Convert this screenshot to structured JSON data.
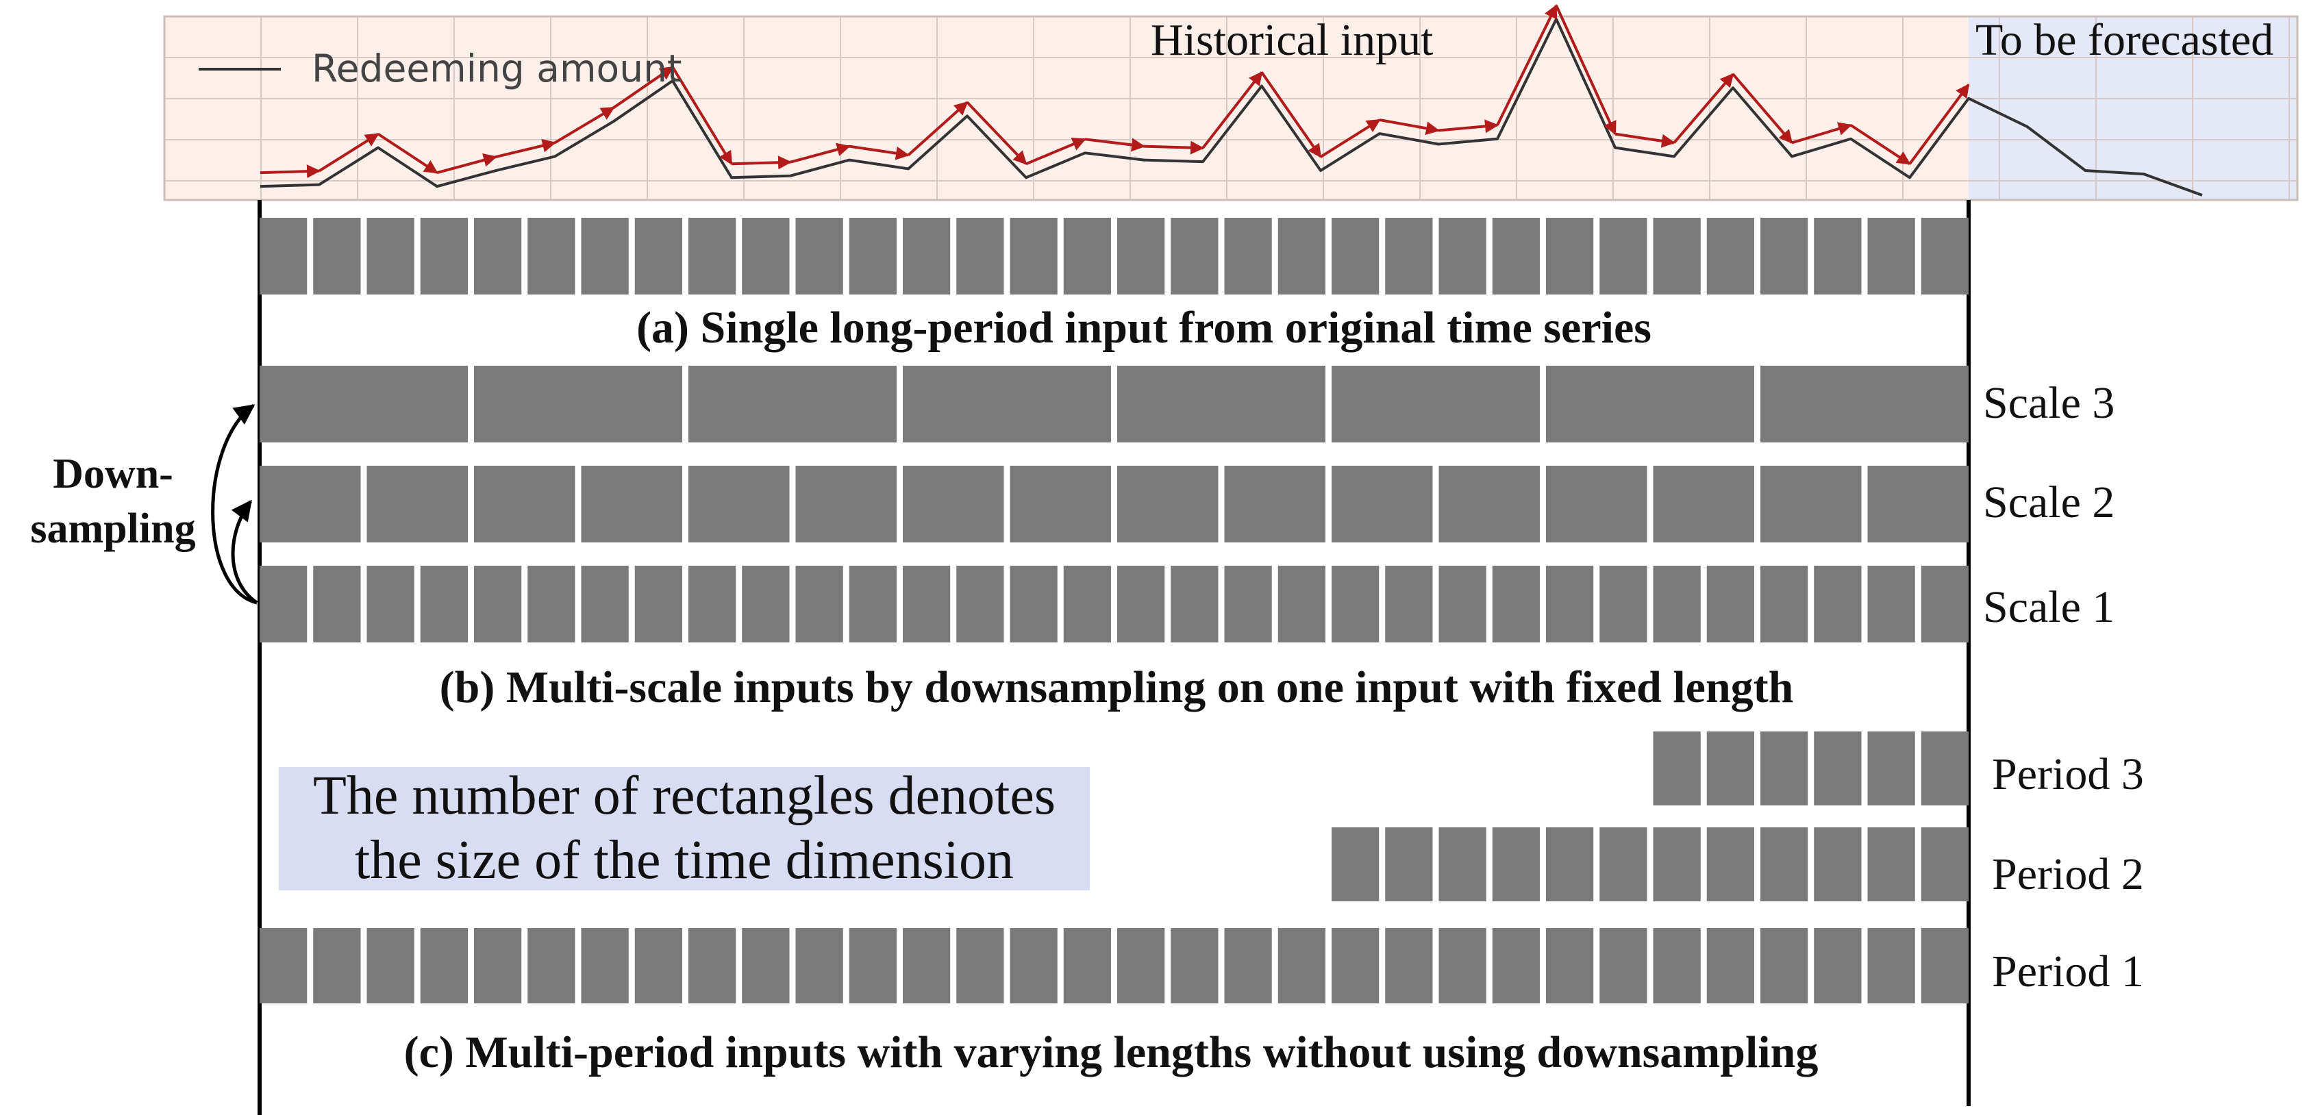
{
  "chart_data": {
    "type": "line",
    "series": [
      {
        "name": "Redeeming amount",
        "values": [
          0.05,
          0.06,
          0.27,
          0.05,
          0.14,
          0.22,
          0.42,
          0.65,
          0.1,
          0.11,
          0.2,
          0.15,
          0.45,
          0.1,
          0.24,
          0.2,
          0.19,
          0.62,
          0.14,
          0.35,
          0.29,
          0.32,
          1.0,
          0.27,
          0.22,
          0.61,
          0.22,
          0.32,
          0.1,
          0.55,
          0.39,
          0.14,
          0.12,
          0.0
        ]
      }
    ],
    "historical_points": 30,
    "forecast_points": 4,
    "annotations": [
      "Historical input",
      "To be forecasted"
    ],
    "legend_position": "top-left",
    "grid": true,
    "colors": {
      "history_background": "#fdf0ea",
      "forecast_background": "#e5e9f7",
      "grid": "#d8c9c4",
      "line": "#333333",
      "arrows": "#b31b1b"
    }
  },
  "chart": {
    "legend_label": "Redeeming amount",
    "historical_label": "Historical input",
    "forecast_label": "To be forecasted"
  },
  "section_a": {
    "title": "(a) Single long-period input from original time series",
    "blocks": 32
  },
  "section_b": {
    "title": "(b) Multi-scale inputs by downsampling on one input with fixed length",
    "rows": [
      {
        "label": "Scale 3",
        "blocks": 8
      },
      {
        "label": "Scale 2",
        "blocks": 16
      },
      {
        "label": "Scale 1",
        "blocks": 32
      }
    ],
    "downsampling_line1": "Down-",
    "downsampling_line2": "sampling"
  },
  "section_c": {
    "title": "(c) Multi-period inputs with varying lengths without using downsampling",
    "rows": [
      {
        "label": "Period 3",
        "blocks": 6
      },
      {
        "label": "Period 2",
        "blocks": 12
      },
      {
        "label": "Period 1",
        "blocks": 32
      }
    ],
    "note_line1": "The number of rectangles denotes",
    "note_line2": "the size of the time dimension"
  },
  "colors": {
    "block": "#7a7a7a",
    "note_background": "#d9ddf3",
    "axis": "#000000"
  }
}
